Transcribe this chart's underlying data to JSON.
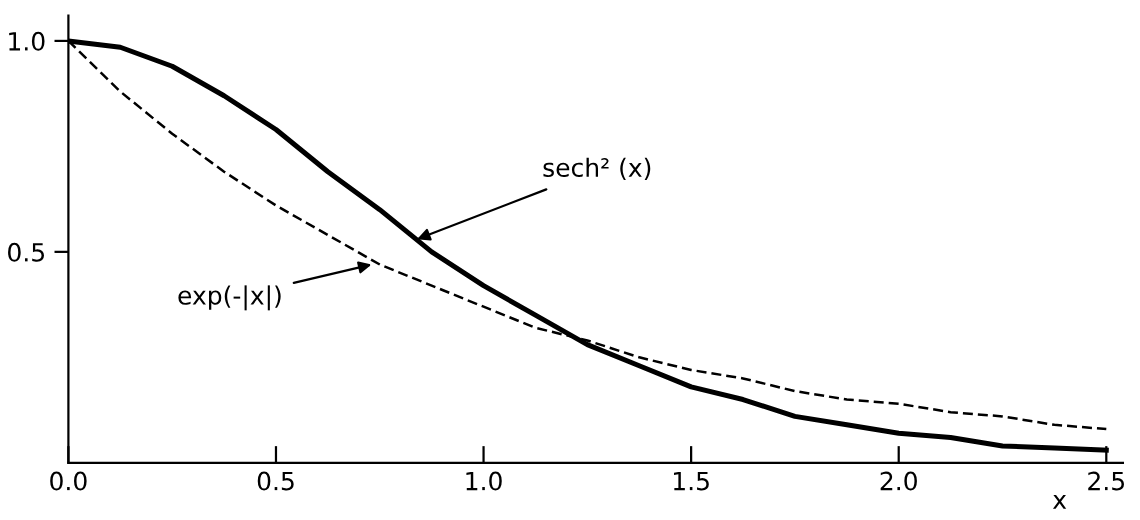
{
  "chart_data": {
    "type": "line",
    "xlabel": "x",
    "x": [
      0,
      0.125,
      0.25,
      0.375,
      0.5,
      0.625,
      0.75,
      0.875,
      1,
      1.125,
      1.25,
      1.375,
      1.5,
      1.625,
      1.75,
      1.875,
      2,
      2.125,
      2.25,
      2.375,
      2.5
    ],
    "series": [
      {
        "color": "#000000",
        "line_style": "solid",
        "values": [
          1,
          0.985,
          0.94,
          0.87,
          0.79,
          0.69,
          0.6,
          0.5,
          0.42,
          0.35,
          0.28,
          0.23,
          0.18,
          0.15,
          0.11,
          0.09,
          0.07,
          0.06,
          0.04,
          0.035,
          0.03
        ]
      },
      {
        "color": "#000000",
        "line_style": "dashed",
        "values": [
          1,
          0.88,
          0.78,
          0.69,
          0.61,
          0.54,
          0.47,
          0.42,
          0.37,
          0.32,
          0.29,
          0.25,
          0.22,
          0.2,
          0.17,
          0.15,
          0.14,
          0.12,
          0.11,
          0.09,
          0.08
        ]
      }
    ],
    "annotations": [
      {
        "text": "sech² (x)",
        "x": 0.84,
        "y": 0.53
      },
      {
        "text": "exp(-|x|)",
        "x": 0.73,
        "y": 0.47
      }
    ],
    "xlim": [
      0,
      2.54
    ],
    "ylim": [
      0,
      1.06
    ],
    "xticks": [
      {
        "value": 0,
        "label": "0.0"
      },
      {
        "value": 0.5,
        "label": "0.5"
      },
      {
        "value": 1,
        "label": "1.0"
      },
      {
        "value": 1.5,
        "label": "1.5"
      },
      {
        "value": 2,
        "label": "2.0"
      },
      {
        "value": 2.5,
        "label": "2.5"
      }
    ],
    "yticks": [
      {
        "value": 0.5,
        "label": "0.5"
      },
      {
        "value": 1,
        "label": "1.0"
      }
    ],
    "grid": false,
    "legend": false,
    "marker": "none"
  }
}
